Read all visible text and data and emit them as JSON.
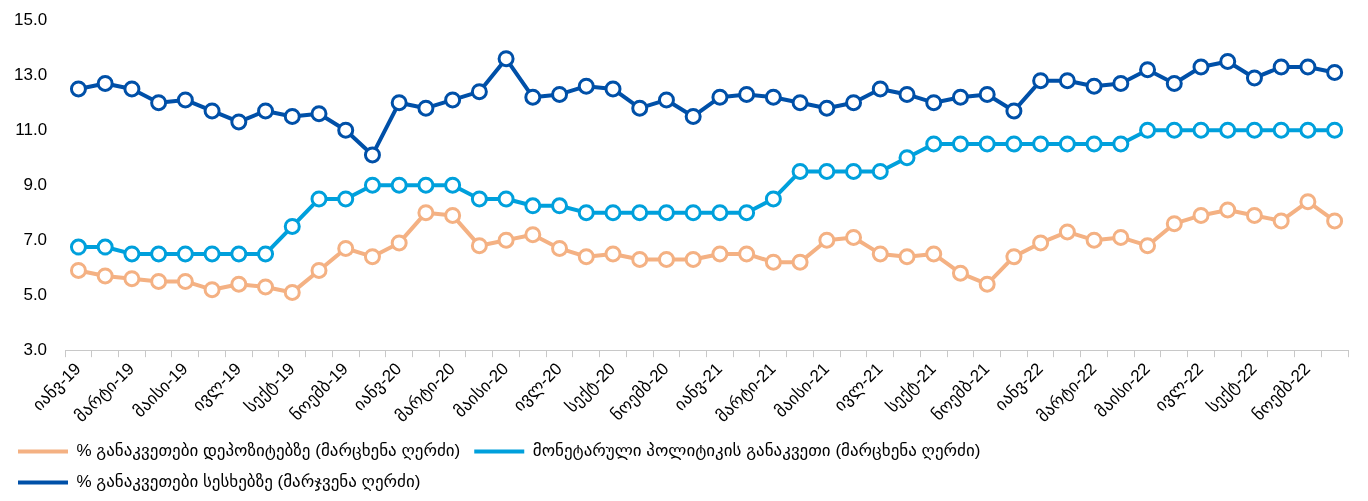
{
  "chart_data": {
    "type": "line",
    "categories": [
      "იანვ-19",
      null,
      "მარტი-19",
      null,
      "მაისი-19",
      null,
      "ივლ-19",
      null,
      "სექტ-19",
      null,
      "ნოემბ-19",
      null,
      "იანვ-20",
      null,
      "მარტი-20",
      null,
      "მაისი-20",
      null,
      "ივლ-20",
      null,
      "სექტ-20",
      null,
      "ნოემბ-20",
      null,
      "იანვ-21",
      null,
      "მარტი-21",
      null,
      "მაისი-21",
      null,
      "ივლ-21",
      null,
      "სექტ-21",
      null,
      "ნოემბ-21",
      null,
      "იანვ-22",
      null,
      "მარტი-22",
      null,
      "მაისი-22",
      null,
      "ივლ-22",
      null,
      "სექტ-22",
      null,
      "ნოემბ-22",
      null
    ],
    "series": [
      {
        "name": "% განაკვეთები დეპოზიტებზე (მარცხენა ღერძი)",
        "color": "#f4b183",
        "values": [
          5.9,
          5.7,
          5.6,
          5.5,
          5.5,
          5.2,
          5.4,
          5.3,
          5.1,
          5.9,
          6.7,
          6.4,
          6.9,
          8.0,
          7.9,
          6.8,
          7.0,
          7.2,
          6.7,
          6.4,
          6.5,
          6.3,
          6.3,
          6.3,
          6.5,
          6.5,
          6.2,
          6.2,
          7.0,
          7.1,
          6.5,
          6.4,
          6.5,
          5.8,
          5.4,
          6.4,
          6.9,
          7.3,
          7.0,
          7.1,
          6.8,
          7.6,
          7.9,
          8.1,
          7.9,
          7.7,
          8.4,
          7.7
        ]
      },
      {
        "name": "მონეტარული პოლიტიკის განაკვეთი (მარცხენა ღერძი)",
        "color": "#00a0dc",
        "values": [
          6.75,
          6.75,
          6.5,
          6.5,
          6.5,
          6.5,
          6.5,
          6.5,
          7.5,
          8.5,
          8.5,
          9,
          9,
          9,
          9,
          8.5,
          8.5,
          8.25,
          8.25,
          8,
          8,
          8,
          8,
          8,
          8,
          8,
          8.5,
          9.5,
          9.5,
          9.5,
          9.5,
          10,
          10.5,
          10.5,
          10.5,
          10.5,
          10.5,
          10.5,
          10.5,
          10.5,
          11,
          11,
          11,
          11,
          11,
          11,
          11,
          11
        ]
      },
      {
        "name": "% განაკვეთები სესხებზე (მარჯვენა ღერძი)",
        "color": "#0050a8",
        "values": [
          12.5,
          12.7,
          12.5,
          12.0,
          12.1,
          11.7,
          11.3,
          11.7,
          11.5,
          11.6,
          11.0,
          10.1,
          12.0,
          11.8,
          12.1,
          12.4,
          13.6,
          12.2,
          12.3,
          12.6,
          12.5,
          11.8,
          12.1,
          11.5,
          12.2,
          12.3,
          12.2,
          12.0,
          11.8,
          12.0,
          12.5,
          12.3,
          12.0,
          12.2,
          12.3,
          11.7,
          12.8,
          12.8,
          12.6,
          12.7,
          13.2,
          12.7,
          13.3,
          13.5,
          12.9,
          13.3,
          13.3,
          13.1
        ]
      }
    ],
    "ylim": [
      3,
      15
    ],
    "yticks": [
      {
        "value": 3,
        "label": "3.0"
      },
      {
        "value": 5,
        "label": "5.0"
      },
      {
        "value": 7,
        "label": "7.0"
      },
      {
        "value": 9,
        "label": "9.0"
      },
      {
        "value": 11,
        "label": "11.0"
      },
      {
        "value": 13,
        "label": "13.0"
      },
      {
        "value": 15,
        "label": "15.0"
      }
    ],
    "grid": false,
    "legend": "bottom",
    "marker": "circle",
    "line_style": "solid"
  }
}
